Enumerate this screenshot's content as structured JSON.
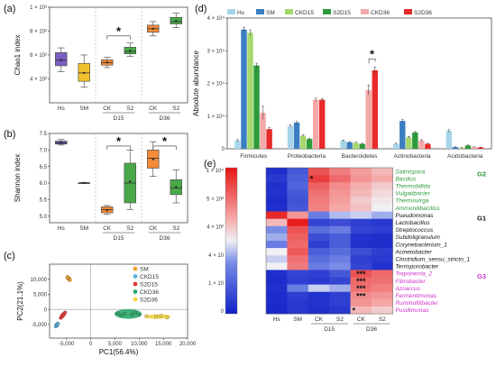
{
  "chart_data": [
    {
      "panel": "a",
      "type": "box",
      "ylabel": "Chao1 index",
      "ylim": [
        200,
        1000
      ],
      "yticks": [
        {
          "v": 400,
          "label": "4 × 10²"
        },
        {
          "v": 600,
          "label": "6 × 10²"
        },
        {
          "v": 800,
          "label": "8 × 10²"
        },
        {
          "v": 1000,
          "label": "1 × 10³"
        }
      ],
      "groups": [
        {
          "label": "Hs",
          "color": "#7b5fc1",
          "min": 460,
          "q1": 510,
          "median": 555,
          "q3": 620,
          "max": 660,
          "mean": 560
        },
        {
          "label": "SM",
          "color": "#f2c12e",
          "min": 330,
          "q1": 380,
          "median": 450,
          "q3": 530,
          "max": 600,
          "mean": 450
        },
        {
          "label": "CK",
          "color": "#f28b3a",
          "min": 495,
          "q1": 515,
          "median": 535,
          "q3": 560,
          "max": 580,
          "mean": 538
        },
        {
          "label": "S2",
          "color": "#4aa84a",
          "min": 590,
          "q1": 610,
          "median": 630,
          "q3": 665,
          "max": 700,
          "mean": 635
        },
        {
          "label": "CK",
          "color": "#f28b3a",
          "min": 760,
          "q1": 790,
          "median": 820,
          "q3": 850,
          "max": 880,
          "mean": 820
        },
        {
          "label": "S2",
          "color": "#4aa84a",
          "min": 830,
          "q1": 860,
          "median": 880,
          "q3": 915,
          "max": 950,
          "mean": 885
        }
      ],
      "subgroups": [
        {
          "label": "D15"
        },
        {
          "label": "D36"
        }
      ],
      "significance": [
        {
          "label": "*"
        }
      ]
    },
    {
      "panel": "b",
      "type": "box",
      "ylabel": "Shannon index",
      "ylim": [
        4.8,
        7.5
      ],
      "yticks": [
        {
          "v": 5.0,
          "label": "5.0"
        },
        {
          "v": 5.5,
          "label": "5.5"
        },
        {
          "v": 6.0,
          "label": "6.0"
        },
        {
          "v": 6.5,
          "label": "6.5"
        },
        {
          "v": 7.0,
          "label": "7.0"
        },
        {
          "v": 7.5,
          "label": "7.5"
        }
      ],
      "groups": [
        {
          "label": "Hs",
          "color": "#7b5fc1",
          "min": 7.15,
          "q1": 7.18,
          "median": 7.22,
          "q3": 7.27,
          "max": 7.32,
          "mean": 7.22
        },
        {
          "label": "SM",
          "color": "#f2c12e",
          "min": 5.99,
          "q1": 6.0,
          "median": 6.0,
          "q3": 6.01,
          "max": 6.02,
          "mean": 6.0
        },
        {
          "label": "CK",
          "color": "#f28b3a",
          "min": 5.05,
          "q1": 5.1,
          "median": 5.2,
          "q3": 5.28,
          "max": 5.32,
          "mean": 5.18
        },
        {
          "label": "S2",
          "color": "#4aa84a",
          "min": 5.2,
          "q1": 5.4,
          "median": 6.0,
          "q3": 6.6,
          "max": 7.0,
          "mean": 6.05
        },
        {
          "label": "CK",
          "color": "#f28b3a",
          "min": 6.2,
          "q1": 6.45,
          "median": 6.75,
          "q3": 7.0,
          "max": 7.25,
          "mean": 6.72
        },
        {
          "label": "S2",
          "color": "#4aa84a",
          "min": 5.4,
          "q1": 5.65,
          "median": 5.85,
          "q3": 6.1,
          "max": 6.4,
          "mean": 5.88
        }
      ],
      "subgroups": [
        {
          "label": "D15"
        },
        {
          "label": "D36"
        }
      ],
      "significance": [
        {
          "label": "*"
        },
        {
          "label": "*"
        }
      ]
    },
    {
      "panel": "c",
      "type": "scatter",
      "xlabel": "PC1(56.4%)",
      "ylabel": "PC2(21.1%)",
      "xlim": [
        -8500,
        20000
      ],
      "ylim": [
        -9500,
        15000
      ],
      "xticks": [
        {
          "v": -5000,
          "label": "-5,000"
        },
        {
          "v": 0,
          "label": "0"
        },
        {
          "v": 5000,
          "label": "5,000"
        },
        {
          "v": 10000,
          "label": "10,000"
        },
        {
          "v": 15000,
          "label": "15,000"
        },
        {
          "v": 20000,
          "label": "20,000"
        }
      ],
      "yticks": [
        {
          "v": -5000,
          "label": "-5,000"
        },
        {
          "v": 0,
          "label": "0"
        },
        {
          "v": 5000,
          "label": "5,000"
        },
        {
          "v": 10000,
          "label": "10,000"
        }
      ],
      "legend_position": "top-right",
      "series": [
        {
          "name": "SM",
          "color": "#f0a030",
          "points": [
            [
              -4600,
              10300
            ],
            [
              -4300,
              9800
            ],
            [
              -4800,
              10700
            ]
          ]
        },
        {
          "name": "CKD15",
          "color": "#5ab4e0",
          "points": [
            [
              -7200,
              -5600
            ],
            [
              -7000,
              -5100
            ],
            [
              -6800,
              -4700
            ]
          ]
        },
        {
          "name": "S2D15",
          "color": "#e23a3a",
          "points": [
            [
              -6200,
              -2800
            ],
            [
              -5800,
              -2000
            ],
            [
              -5300,
              -1000
            ]
          ]
        },
        {
          "name": "CKD36",
          "color": "#2aa86a",
          "points": [
            [
              5500,
              -1200
            ],
            [
              7000,
              -1400
            ],
            [
              8500,
              -1600
            ],
            [
              10000,
              -1800
            ],
            [
              6200,
              -1900
            ],
            [
              9200,
              -1100
            ]
          ]
        },
        {
          "name": "S2D36",
          "color": "#f2d64a",
          "points": [
            [
              11500,
              -2200
            ],
            [
              13500,
              -2400
            ],
            [
              15800,
              -2700
            ],
            [
              14500,
              -2100
            ]
          ]
        }
      ]
    },
    {
      "panel": "d",
      "type": "bar",
      "ylabel": "Absolute abundance",
      "ylim": [
        0,
        40000
      ],
      "yticks": [
        {
          "v": 0,
          "label": "0"
        },
        {
          "v": 10000,
          "label": "1 × 10⁴"
        },
        {
          "v": 20000,
          "label": "2 × 10⁴"
        },
        {
          "v": 30000,
          "label": "3 × 10⁴"
        },
        {
          "v": 40000,
          "label": "4 × 10⁴"
        }
      ],
      "categories": [
        "Firmicutes",
        "Proteobacteria",
        "Bacteroidetes",
        "Actinobacteria",
        "Acidobacteria"
      ],
      "legend_position": "top",
      "series": [
        {
          "name": "Hs",
          "color": "#a8d4ea",
          "values": [
            2500,
            7000,
            2500,
            1500,
            5500
          ],
          "errors": [
            300,
            300,
            200,
            200,
            400
          ]
        },
        {
          "name": "SM",
          "color": "#3a7fc2",
          "values": [
            36500,
            8000,
            2000,
            8500,
            500
          ],
          "errors": [
            700,
            400,
            200,
            400,
            100
          ]
        },
        {
          "name": "CKD15",
          "color": "#a6d86e",
          "values": [
            35500,
            4000,
            1800,
            3500,
            300
          ],
          "errors": [
            900,
            300,
            200,
            300,
            80
          ]
        },
        {
          "name": "S2D15",
          "color": "#2e9a3a",
          "values": [
            25500,
            3000,
            1500,
            5000,
            1000
          ],
          "errors": [
            700,
            200,
            200,
            300,
            150
          ]
        },
        {
          "name": "CKD36",
          "color": "#f4a8a8",
          "values": [
            11000,
            15000,
            18000,
            2500,
            500
          ],
          "errors": [
            2000,
            500,
            1500,
            300,
            100
          ]
        },
        {
          "name": "S2D36",
          "color": "#e82a2a",
          "values": [
            6000,
            15000,
            24000,
            1500,
            400
          ],
          "errors": [
            500,
            400,
            1000,
            200,
            80
          ]
        }
      ],
      "significance": [
        {
          "label": "*"
        }
      ]
    },
    {
      "panel": "e",
      "type": "heatmap",
      "columns": [
        "Hs",
        "SM",
        "CK",
        "S2",
        "CK",
        "S2"
      ],
      "subgroups": [
        {
          "label": "D15"
        },
        {
          "label": "D36"
        }
      ],
      "colorbar": [
        {
          "label": "1 × 10⁴"
        },
        {
          "label": "5 × 10³"
        },
        {
          "label": "4 × 10²"
        },
        {
          "label": "4 × 10"
        },
        {
          "label": "1 × 10"
        },
        {
          "label": "0"
        }
      ],
      "rows": [
        {
          "name": "Salinispora",
          "group": "G2",
          "color": "#2e9a3a",
          "values": [
            0.05,
            0.18,
            0.85,
            0.75,
            0.68,
            0.62
          ]
        },
        {
          "name": "Bacillus",
          "group": "G2",
          "color": "#2e9a3a",
          "values": [
            0.08,
            0.2,
            0.9,
            0.8,
            0.7,
            0.65
          ]
        },
        {
          "name": "Thermobifida",
          "group": "G2",
          "color": "#2e9a3a",
          "values": [
            0.05,
            0.22,
            0.82,
            0.72,
            0.64,
            0.58
          ]
        },
        {
          "name": "Vulgatibacter",
          "group": "G2",
          "color": "#2e9a3a",
          "values": [
            0.06,
            0.18,
            0.78,
            0.7,
            0.62,
            0.55
          ]
        },
        {
          "name": "Thermovirga",
          "group": "G2",
          "color": "#2e9a3a",
          "values": [
            0.04,
            0.16,
            0.76,
            0.68,
            0.58,
            0.52
          ]
        },
        {
          "name": "Ammonilibacillus",
          "group": "G2",
          "color": "#2e9a3a",
          "values": [
            0.05,
            0.18,
            0.74,
            0.66,
            0.6,
            0.5
          ]
        },
        {
          "name": "Pseudomonas",
          "group": "G1",
          "color": "#111111",
          "values": [
            0.95,
            0.7,
            0.3,
            0.42,
            0.45,
            0.4
          ]
        },
        {
          "name": "Lactobacillus",
          "group": "G1",
          "color": "#111111",
          "values": [
            0.62,
            0.98,
            0.12,
            0.15,
            0.1,
            0.08
          ]
        },
        {
          "name": "Streptococcus",
          "group": "G1",
          "color": "#111111",
          "values": [
            0.35,
            0.85,
            0.25,
            0.3,
            0.12,
            0.1
          ]
        },
        {
          "name": "Subdoligranulum",
          "group": "G1",
          "color": "#111111",
          "values": [
            0.4,
            0.82,
            0.15,
            0.2,
            0.06,
            0.05
          ]
        },
        {
          "name": "Corynebacterium_1",
          "group": "G1",
          "color": "#111111",
          "values": [
            0.3,
            0.8,
            0.1,
            0.2,
            0.05,
            0.05
          ]
        },
        {
          "name": "Acinetobacter",
          "group": "G1",
          "color": "#111111",
          "values": [
            0.5,
            0.84,
            0.2,
            0.25,
            0.15,
            0.1
          ]
        },
        {
          "name": "Clostridium_sensu_stricto_1",
          "group": "G1",
          "color": "#111111",
          "values": [
            0.45,
            0.78,
            0.25,
            0.3,
            0.1,
            0.08
          ]
        },
        {
          "name": "Terrisporobacter",
          "group": "G1",
          "color": "#111111",
          "values": [
            0.5,
            0.76,
            0.3,
            0.35,
            0.12,
            0.06
          ]
        },
        {
          "name": "Treponema_2",
          "group": "G3",
          "color": "#cc33cc",
          "values": [
            0.05,
            0.12,
            0.1,
            0.18,
            0.85,
            0.8
          ]
        },
        {
          "name": "Fibrobacter",
          "group": "G3",
          "color": "#cc33cc",
          "values": [
            0.04,
            0.1,
            0.08,
            0.12,
            0.8,
            0.78
          ]
        },
        {
          "name": "Azoarcus",
          "group": "G3",
          "color": "#cc33cc",
          "values": [
            0.05,
            0.3,
            0.45,
            0.4,
            0.78,
            0.75
          ]
        },
        {
          "name": "Fermentimonas",
          "group": "G3",
          "color": "#cc33cc",
          "values": [
            0.04,
            0.1,
            0.06,
            0.1,
            0.72,
            0.7
          ]
        },
        {
          "name": "Ruminofilibacter",
          "group": "G3",
          "color": "#cc33cc",
          "values": [
            0.04,
            0.08,
            0.06,
            0.1,
            0.7,
            0.66
          ]
        },
        {
          "name": "Pusillimonas",
          "group": "G3",
          "color": "#cc33cc",
          "values": [
            0.03,
            0.08,
            0.05,
            0.08,
            0.62,
            0.58
          ]
        }
      ],
      "group_labels": [
        {
          "label": "G2",
          "color": "#2e9a3a"
        },
        {
          "label": "G1",
          "color": "#111111"
        },
        {
          "label": "G3",
          "color": "#cc33cc"
        }
      ],
      "stars": [
        {
          "row": 1,
          "col": 2,
          "label": "*"
        },
        {
          "row": 14,
          "col": 4,
          "label": "***"
        },
        {
          "row": 15,
          "col": 4,
          "label": "***"
        },
        {
          "row": 16,
          "col": 4,
          "label": "***"
        },
        {
          "row": 17,
          "col": 4,
          "label": "***"
        },
        {
          "row": 19,
          "col": 4,
          "label": "*"
        }
      ]
    }
  ],
  "panels": {
    "a": "(a)",
    "b": "(b)",
    "c": "(c)",
    "d": "(d)",
    "e": "(e)"
  }
}
